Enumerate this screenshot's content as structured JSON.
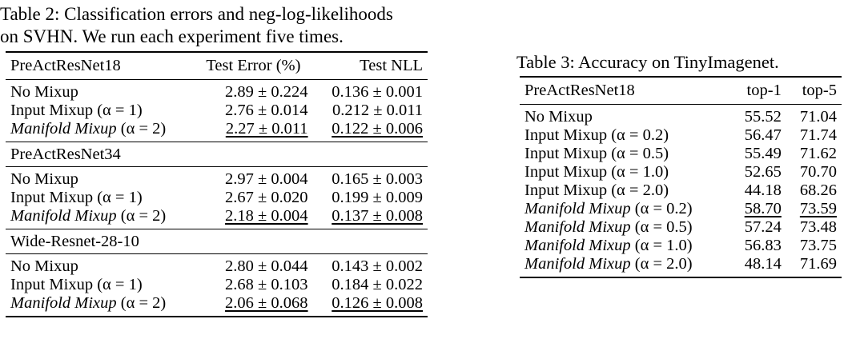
{
  "table2": {
    "caption": "Table 2: Classification errors and neg-log-likelihoods on SVHN. We run each experiment five times.",
    "caption_line1": "Table 2: Classification errors and neg-log-likelihoods",
    "caption_line2": "on SVHN. We run each experiment five times.",
    "col_test_error": "Test Error (%)",
    "col_test_nll": "Test NLL",
    "groups": [
      {
        "name": "PreActResNet18",
        "rows": [
          {
            "method": "No Mixup",
            "err": "2.89 ± 0.224",
            "nll": "0.136 ± 0.001"
          },
          {
            "method": "Input Mixup (α = 1)",
            "err": "2.76 ± 0.014",
            "nll": "0.212 ± 0.011"
          },
          {
            "method_italic": "Manifold Mixup",
            "method_rest": " (α = 2)",
            "err": "2.27 ± 0.011",
            "nll": "0.122 ± 0.006"
          }
        ]
      },
      {
        "name": "PreActResNet34",
        "rows": [
          {
            "method": "No Mixup",
            "err": "2.97 ± 0.004",
            "nll": "0.165 ± 0.003"
          },
          {
            "method": "Input Mixup (α = 1)",
            "err": "2.67 ± 0.020",
            "nll": "0.199 ± 0.009"
          },
          {
            "method_italic": "Manifold Mixup",
            "method_rest": " (α = 2)",
            "err": "2.18 ± 0.004",
            "nll": "0.137 ± 0.008"
          }
        ]
      },
      {
        "name": "Wide-Resnet-28-10",
        "rows": [
          {
            "method": "No Mixup",
            "err": "2.80 ± 0.044",
            "nll": "0.143 ± 0.002"
          },
          {
            "method": "Input Mixup (α = 1)",
            "err": "2.68 ± 0.103",
            "nll": "0.184 ± 0.022"
          },
          {
            "method_italic": "Manifold Mixup",
            "method_rest": " (α = 2)",
            "err": "2.06 ± 0.068",
            "nll": "0.126 ± 0.008"
          }
        ]
      }
    ]
  },
  "table3": {
    "caption": "Table 3: Accuracy on TinyImagenet.",
    "header_model": "PreActResNet18",
    "col_top1": "top-1",
    "col_top5": "top-5",
    "rows": [
      {
        "method": "No Mixup",
        "top1": "55.52",
        "top5": "71.04"
      },
      {
        "method": "Input Mixup (α = 0.2)",
        "top1": "56.47",
        "top5": "71.74"
      },
      {
        "method": "Input Mixup (α = 0.5)",
        "top1": "55.49",
        "top5": "71.62"
      },
      {
        "method": "Input Mixup (α = 1.0)",
        "top1": "52.65",
        "top5": "70.70"
      },
      {
        "method": "Input Mixup (α = 2.0)",
        "top1": "44.18",
        "top5": "68.26"
      },
      {
        "method_italic": "Manifold Mixup",
        "method_rest": " (α = 0.2)",
        "top1": "58.70",
        "top5": "73.59"
      },
      {
        "method_italic": "Manifold Mixup",
        "method_rest": " (α = 0.5)",
        "top1": "57.24",
        "top5": "73.48"
      },
      {
        "method_italic": "Manifold Mixup",
        "method_rest": " (α = 1.0)",
        "top1": "56.83",
        "top5": "73.75"
      },
      {
        "method_italic": "Manifold Mixup",
        "method_rest": " (α = 2.0)",
        "top1": "48.14",
        "top5": "71.69"
      }
    ]
  }
}
